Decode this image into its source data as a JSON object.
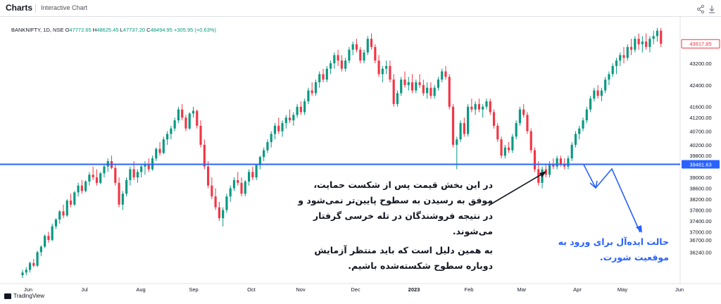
{
  "header": {
    "brand": "Charts",
    "subtitle": "Interactive Chart",
    "share_icon": "share-icon",
    "download_icon": "download-icon"
  },
  "symbol": {
    "name": "BANKNIFTY, 1D, NSE",
    "open_label": "O",
    "open": "47772.65",
    "high_label": "H",
    "high": "48625.45",
    "low_label": "L",
    "low": "47737.20",
    "close_label": "C",
    "close": "48494.95",
    "change": "+305.95 (+0.63%)"
  },
  "chart_data": {
    "type": "candlestick",
    "y_ticks": [
      36240,
      36700,
      37000,
      37400,
      37800,
      38200,
      38600,
      39000,
      39800,
      40200,
      40700,
      41200,
      41600,
      42400,
      43200
    ],
    "y_tick_labels": [
      "36240.00",
      "36700.00",
      "37000.00",
      "37400.00",
      "37800.00",
      "38200.00",
      "38600.00",
      "39000.00",
      "39800.00",
      "40200.00",
      "40700.00",
      "41200.00",
      "41600.00",
      "42400.00",
      "43200.00"
    ],
    "x_ticks": [
      "Jun",
      "Jul",
      "Aug",
      "Sep",
      "Oct",
      "Nov",
      "Dec",
      "2023",
      "Feb",
      "Mar",
      "Apr",
      "May",
      "Jun"
    ],
    "support_level": 39481.63,
    "support_label": "39481.63",
    "last_price": 43917.85,
    "last_price_label": "43917.85",
    "colors": {
      "up": "#089981",
      "down": "#f23645",
      "support": "#2962ff",
      "arrow_dark": "#131722",
      "arrow_blue": "#2962ff"
    },
    "ohlc": [
      [
        35400,
        35600,
        35300,
        35500
      ],
      [
        35500,
        35700,
        35400,
        35600
      ],
      [
        35600,
        35900,
        35500,
        35850
      ],
      [
        35850,
        36000,
        35700,
        35750
      ],
      [
        35750,
        36300,
        35700,
        36250
      ],
      [
        36250,
        36500,
        36100,
        36450
      ],
      [
        36450,
        36900,
        36400,
        36850
      ],
      [
        36850,
        37000,
        36600,
        36700
      ],
      [
        36700,
        37300,
        36650,
        37200
      ],
      [
        37200,
        37500,
        37100,
        37450
      ],
      [
        37450,
        37800,
        37300,
        37750
      ],
      [
        37750,
        38000,
        37500,
        37600
      ],
      [
        37600,
        38200,
        37550,
        38150
      ],
      [
        38150,
        38400,
        37900,
        38000
      ],
      [
        38000,
        38500,
        37950,
        38450
      ],
      [
        38450,
        38800,
        38300,
        38700
      ],
      [
        38700,
        38900,
        38400,
        38500
      ],
      [
        38500,
        38900,
        38450,
        38850
      ],
      [
        38850,
        39200,
        38700,
        39100
      ],
      [
        39100,
        39400,
        38900,
        39000
      ],
      [
        39000,
        39300,
        38700,
        38800
      ],
      [
        38800,
        39200,
        38750,
        39150
      ],
      [
        39150,
        39500,
        39000,
        39400
      ],
      [
        39400,
        39700,
        39200,
        39600
      ],
      [
        39600,
        39800,
        39300,
        39350
      ],
      [
        39350,
        39500,
        38700,
        38800
      ],
      [
        38800,
        39000,
        37900,
        38000
      ],
      [
        38000,
        38500,
        37800,
        38400
      ],
      [
        38400,
        39000,
        38300,
        38900
      ],
      [
        38900,
        39400,
        38700,
        39300
      ],
      [
        39300,
        39600,
        38900,
        39000
      ],
      [
        39000,
        39300,
        38800,
        39200
      ],
      [
        39200,
        39500,
        39000,
        39400
      ],
      [
        39400,
        39600,
        39100,
        39500
      ],
      [
        39500,
        39700,
        39200,
        39300
      ],
      [
        39300,
        39800,
        39250,
        39700
      ],
      [
        39700,
        40100,
        39600,
        40050
      ],
      [
        40050,
        40300,
        39800,
        39900
      ],
      [
        39900,
        40500,
        39850,
        40400
      ],
      [
        40400,
        40700,
        40200,
        40600
      ],
      [
        40600,
        40900,
        40400,
        40800
      ],
      [
        40800,
        41200,
        40700,
        41100
      ],
      [
        41100,
        41600,
        41000,
        41500
      ],
      [
        41500,
        41700,
        41100,
        41200
      ],
      [
        41200,
        41300,
        40700,
        40800
      ],
      [
        40800,
        41400,
        40750,
        41350
      ],
      [
        41350,
        41600,
        41200,
        41450
      ],
      [
        41450,
        41500,
        40800,
        40900
      ],
      [
        40900,
        41100,
        40100,
        40200
      ],
      [
        40200,
        40400,
        39300,
        39400
      ],
      [
        39400,
        39600,
        38600,
        38700
      ],
      [
        38700,
        39000,
        38200,
        38300
      ],
      [
        38300,
        38600,
        37800,
        37900
      ],
      [
        37900,
        38100,
        37400,
        37500
      ],
      [
        37500,
        37900,
        37200,
        37800
      ],
      [
        37800,
        38400,
        37700,
        38300
      ],
      [
        38300,
        38700,
        38100,
        38600
      ],
      [
        38600,
        39000,
        38500,
        38900
      ],
      [
        38900,
        39200,
        38700,
        38800
      ],
      [
        38800,
        39000,
        38300,
        38400
      ],
      [
        38400,
        38900,
        38300,
        38850
      ],
      [
        38850,
        39300,
        38700,
        39200
      ],
      [
        39200,
        39400,
        38900,
        39000
      ],
      [
        39000,
        39500,
        38900,
        39450
      ],
      [
        39450,
        39800,
        39300,
        39750
      ],
      [
        39750,
        40100,
        39600,
        40000
      ],
      [
        40000,
        40400,
        39900,
        40300
      ],
      [
        40300,
        40700,
        40100,
        40600
      ],
      [
        40600,
        41000,
        40400,
        40900
      ],
      [
        40900,
        41200,
        40600,
        40700
      ],
      [
        40700,
        41100,
        40500,
        41000
      ],
      [
        41000,
        41300,
        40800,
        41200
      ],
      [
        41200,
        41500,
        41000,
        41100
      ],
      [
        41100,
        41400,
        40900,
        41300
      ],
      [
        41300,
        41700,
        41200,
        41600
      ],
      [
        41600,
        41800,
        41300,
        41400
      ],
      [
        41400,
        41900,
        41300,
        41800
      ],
      [
        41800,
        42300,
        41700,
        42200
      ],
      [
        42200,
        42500,
        42000,
        42100
      ],
      [
        42100,
        42600,
        42000,
        42500
      ],
      [
        42500,
        42900,
        42300,
        42800
      ],
      [
        42800,
        43000,
        42500,
        42600
      ],
      [
        42600,
        43100,
        42500,
        43000
      ],
      [
        43000,
        43300,
        42800,
        43200
      ],
      [
        43200,
        43600,
        43000,
        43500
      ],
      [
        43500,
        43700,
        43100,
        43300
      ],
      [
        43300,
        43500,
        42900,
        43000
      ],
      [
        43000,
        43400,
        42900,
        43300
      ],
      [
        43300,
        43800,
        43200,
        43700
      ],
      [
        43700,
        44000,
        43500,
        43900
      ],
      [
        43900,
        44100,
        43600,
        43700
      ],
      [
        43700,
        43800,
        43200,
        43300
      ],
      [
        43300,
        43700,
        43200,
        43600
      ],
      [
        43600,
        44200,
        43500,
        44100
      ],
      [
        44100,
        44300,
        43700,
        43800
      ],
      [
        43800,
        43900,
        43200,
        43300
      ],
      [
        43300,
        43500,
        42700,
        42800
      ],
      [
        42800,
        43100,
        42500,
        43000
      ],
      [
        43000,
        43300,
        42800,
        43100
      ],
      [
        43100,
        43300,
        42500,
        42600
      ],
      [
        42600,
        42800,
        41600,
        41700
      ],
      [
        41700,
        42200,
        41600,
        42100
      ],
      [
        42100,
        42700,
        42000,
        42600
      ],
      [
        42600,
        42900,
        42300,
        42400
      ],
      [
        42400,
        42700,
        42200,
        42500
      ],
      [
        42500,
        42800,
        42100,
        42200
      ],
      [
        42200,
        42600,
        42100,
        42500
      ],
      [
        42500,
        42800,
        42300,
        42400
      ],
      [
        42400,
        42600,
        42000,
        42100
      ],
      [
        42100,
        42500,
        41900,
        42300
      ],
      [
        42300,
        42500,
        41900,
        42000
      ],
      [
        42000,
        42400,
        41900,
        42300
      ],
      [
        42300,
        42700,
        42200,
        42600
      ],
      [
        42600,
        43000,
        42500,
        42900
      ],
      [
        42900,
        43100,
        42600,
        42700
      ],
      [
        42700,
        42800,
        41500,
        41600
      ],
      [
        41600,
        41700,
        40100,
        40200
      ],
      [
        40200,
        40500,
        39300,
        40400
      ],
      [
        40400,
        41100,
        40300,
        41000
      ],
      [
        41000,
        41200,
        40500,
        40600
      ],
      [
        40600,
        41700,
        40500,
        41600
      ],
      [
        41600,
        41900,
        41400,
        41500
      ],
      [
        41500,
        41800,
        41300,
        41700
      ],
      [
        41700,
        41900,
        41400,
        41500
      ],
      [
        41500,
        41700,
        41200,
        41600
      ],
      [
        41600,
        41900,
        41500,
        41800
      ],
      [
        41800,
        41900,
        41300,
        41400
      ],
      [
        41400,
        41500,
        40800,
        40900
      ],
      [
        40900,
        41000,
        40300,
        40400
      ],
      [
        40400,
        40500,
        39700,
        39800
      ],
      [
        39800,
        40200,
        39700,
        40100
      ],
      [
        40100,
        40300,
        39900,
        40000
      ],
      [
        40000,
        40600,
        39900,
        40500
      ],
      [
        40500,
        41100,
        40400,
        41000
      ],
      [
        41000,
        41600,
        40900,
        41500
      ],
      [
        41500,
        41700,
        41200,
        41300
      ],
      [
        41300,
        41400,
        40600,
        40700
      ],
      [
        40700,
        40800,
        39900,
        40000
      ],
      [
        40000,
        40100,
        39200,
        39300
      ],
      [
        39300,
        39600,
        38700,
        38800
      ],
      [
        38800,
        39400,
        38600,
        39300
      ],
      [
        39300,
        39500,
        39000,
        39100
      ],
      [
        39100,
        39600,
        39000,
        39500
      ],
      [
        39500,
        39700,
        39300,
        39400
      ],
      [
        39400,
        39800,
        39300,
        39700
      ],
      [
        39700,
        39800,
        39400,
        39500
      ],
      [
        39500,
        39700,
        39300,
        39400
      ],
      [
        39400,
        39800,
        39300,
        39700
      ],
      [
        39700,
        40300,
        39600,
        40200
      ],
      [
        40200,
        40700,
        40100,
        40600
      ],
      [
        40600,
        40900,
        40400,
        40800
      ],
      [
        40800,
        41200,
        40700,
        41100
      ],
      [
        41100,
        41600,
        41000,
        41500
      ],
      [
        41500,
        42000,
        41400,
        41900
      ],
      [
        41900,
        42300,
        41800,
        42200
      ],
      [
        42200,
        42400,
        41900,
        42000
      ],
      [
        42000,
        42300,
        41800,
        42200
      ],
      [
        42200,
        42700,
        42100,
        42600
      ],
      [
        42600,
        42900,
        42400,
        42800
      ],
      [
        42800,
        43200,
        42700,
        43100
      ],
      [
        43100,
        43400,
        42800,
        43300
      ],
      [
        43300,
        43600,
        43100,
        43500
      ],
      [
        43500,
        43800,
        43200,
        43400
      ],
      [
        43400,
        43900,
        43300,
        43800
      ],
      [
        43800,
        44100,
        43500,
        43700
      ],
      [
        43700,
        44200,
        43600,
        44100
      ],
      [
        44100,
        44300,
        43700,
        43900
      ],
      [
        43900,
        44200,
        43600,
        44000
      ],
      [
        44000,
        44300,
        43700,
        43800
      ],
      [
        43800,
        44200,
        43600,
        44100
      ],
      [
        44100,
        44400,
        43900,
        44200
      ],
      [
        44200,
        44500,
        44000,
        44400
      ],
      [
        44400,
        44500,
        43800,
        43918
      ]
    ]
  },
  "annotations": {
    "text_1": "در این بخش قیمت پس از شکست حمایت، موفق به رسیدن به سطوح پایین‌تر نمی‌شود و در نتیجه فروشندگان در تله خرسی گرفتار می‌شوند.",
    "text_2": "به همین دلیل است که باید منتظر آزمایش دوباره سطوح شکسته‌شده باشیم.",
    "text_3": "حالت ایده‌آل برای ورود به موقعیت شورت."
  },
  "footer": {
    "brand": "TradingView"
  }
}
